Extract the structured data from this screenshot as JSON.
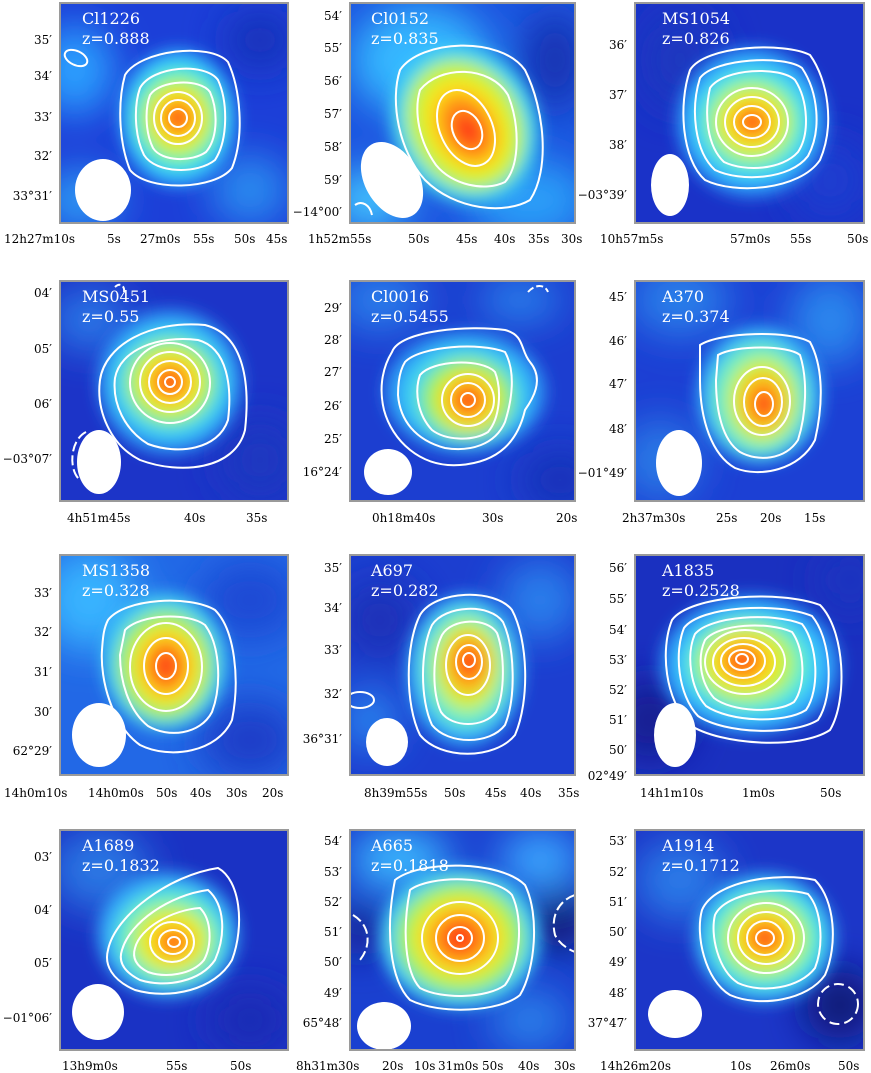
{
  "figure": {
    "panels": [
      {
        "name": "Cl1226",
        "z": "z=0.888",
        "yticks": [
          {
            "deg": "",
            "min": "35′"
          },
          {
            "deg": "",
            "min": "34′"
          },
          {
            "deg": "",
            "min": "33′"
          },
          {
            "deg": "",
            "min": "32′"
          },
          {
            "deg": "33°",
            "min": "31′"
          }
        ],
        "xticks": [
          "12h27m10s",
          "5s",
          "27m0s",
          "55s",
          "50s",
          "45s"
        ]
      },
      {
        "name": "Cl0152",
        "z": "z=0.835",
        "yticks": [
          {
            "deg": "",
            "min": "54′"
          },
          {
            "deg": "",
            "min": "55′"
          },
          {
            "deg": "",
            "min": "56′"
          },
          {
            "deg": "",
            "min": "57′"
          },
          {
            "deg": "",
            "min": "58′"
          },
          {
            "deg": "",
            "min": "59′"
          },
          {
            "deg": "−14°",
            "min": "00′"
          }
        ],
        "xticks": [
          "1h52m55s",
          "50s",
          "45s",
          "40s",
          "35s",
          "30s"
        ]
      },
      {
        "name": "MS1054",
        "z": "z=0.826",
        "yticks": [
          {
            "deg": "",
            "min": "36′"
          },
          {
            "deg": "",
            "min": "37′"
          },
          {
            "deg": "",
            "min": "38′"
          },
          {
            "deg": "−03°",
            "min": "39′"
          }
        ],
        "xticks": [
          "10h57m5s",
          "57m0s",
          "55s",
          "50s"
        ]
      },
      {
        "name": "MS0451",
        "z": "z=0.55",
        "yticks": [
          {
            "deg": "",
            "min": "04′"
          },
          {
            "deg": "",
            "min": "05′"
          },
          {
            "deg": "",
            "min": "06′"
          },
          {
            "deg": "−03°",
            "min": "07′"
          }
        ],
        "xticks": [
          "4h51m45s",
          "40s",
          "35s"
        ]
      },
      {
        "name": "Cl0016",
        "z": "z=0.5455",
        "yticks": [
          {
            "deg": "",
            "min": "29′"
          },
          {
            "deg": "",
            "min": "28′"
          },
          {
            "deg": "",
            "min": "27′"
          },
          {
            "deg": "",
            "min": "26′"
          },
          {
            "deg": "",
            "min": "25′"
          },
          {
            "deg": "16°",
            "min": "24′"
          }
        ],
        "xticks": [
          "0h18m40s",
          "30s",
          "20s"
        ]
      },
      {
        "name": "A370",
        "z": "z=0.374",
        "yticks": [
          {
            "deg": "",
            "min": "45′"
          },
          {
            "deg": "",
            "min": "46′"
          },
          {
            "deg": "",
            "min": "47′"
          },
          {
            "deg": "",
            "min": "48′"
          },
          {
            "deg": "−01°",
            "min": "49′"
          }
        ],
        "xticks": [
          "2h37m30s",
          "25s",
          "20s",
          "15s"
        ]
      },
      {
        "name": "MS1358",
        "z": "z=0.328",
        "yticks": [
          {
            "deg": "",
            "min": "33′"
          },
          {
            "deg": "",
            "min": "32′"
          },
          {
            "deg": "",
            "min": "31′"
          },
          {
            "deg": "",
            "min": "30′"
          },
          {
            "deg": "62°",
            "min": "29′"
          }
        ],
        "xticks": [
          "14h0m10s",
          "14h0m0s",
          "50s",
          "40s",
          "30s",
          "20s"
        ]
      },
      {
        "name": "A697",
        "z": "z=0.282",
        "yticks": [
          {
            "deg": "",
            "min": "35′"
          },
          {
            "deg": "",
            "min": "34′"
          },
          {
            "deg": "",
            "min": "33′"
          },
          {
            "deg": "",
            "min": "32′"
          },
          {
            "deg": "36°",
            "min": "31′"
          }
        ],
        "xticks": [
          "8h39m55s",
          "50s",
          "45s",
          "40s",
          "35s"
        ]
      },
      {
        "name": "A1835",
        "z": "z=0.2528",
        "yticks": [
          {
            "deg": "",
            "min": "56′"
          },
          {
            "deg": "",
            "min": "55′"
          },
          {
            "deg": "",
            "min": "54′"
          },
          {
            "deg": "",
            "min": "53′"
          },
          {
            "deg": "",
            "min": "52′"
          },
          {
            "deg": "",
            "min": "51′"
          },
          {
            "deg": "",
            "min": "50′"
          },
          {
            "deg": "02°",
            "min": "49′"
          }
        ],
        "xticks": [
          "14h1m10s",
          "1m0s",
          "50s"
        ]
      },
      {
        "name": "A1689",
        "z": "z=0.1832",
        "yticks": [
          {
            "deg": "",
            "min": "03′"
          },
          {
            "deg": "",
            "min": "04′"
          },
          {
            "deg": "",
            "min": "05′"
          },
          {
            "deg": "−01°",
            "min": "06′"
          }
        ],
        "xticks": [
          "13h9m0s",
          "55s",
          "50s"
        ]
      },
      {
        "name": "A665",
        "z": "z=0.1818",
        "yticks": [
          {
            "deg": "",
            "min": "54′"
          },
          {
            "deg": "",
            "min": "53′"
          },
          {
            "deg": "",
            "min": "52′"
          },
          {
            "deg": "",
            "min": "51′"
          },
          {
            "deg": "",
            "min": "50′"
          },
          {
            "deg": "",
            "min": "49′"
          },
          {
            "deg": "65°",
            "min": "48′"
          }
        ],
        "xticks": [
          "8h31m30s",
          "20s",
          "10s",
          "31m0s",
          "50s",
          "40s",
          "30s"
        ]
      },
      {
        "name": "A1914",
        "z": "z=0.1712",
        "yticks": [
          {
            "deg": "",
            "min": "53′"
          },
          {
            "deg": "",
            "min": "52′"
          },
          {
            "deg": "",
            "min": "51′"
          },
          {
            "deg": "",
            "min": "50′"
          },
          {
            "deg": "",
            "min": "49′"
          },
          {
            "deg": "",
            "min": "48′"
          },
          {
            "deg": "37°",
            "min": "47′"
          }
        ],
        "xticks": [
          "14h26m20s",
          "10s",
          "26m0s",
          "50s"
        ]
      }
    ]
  }
}
